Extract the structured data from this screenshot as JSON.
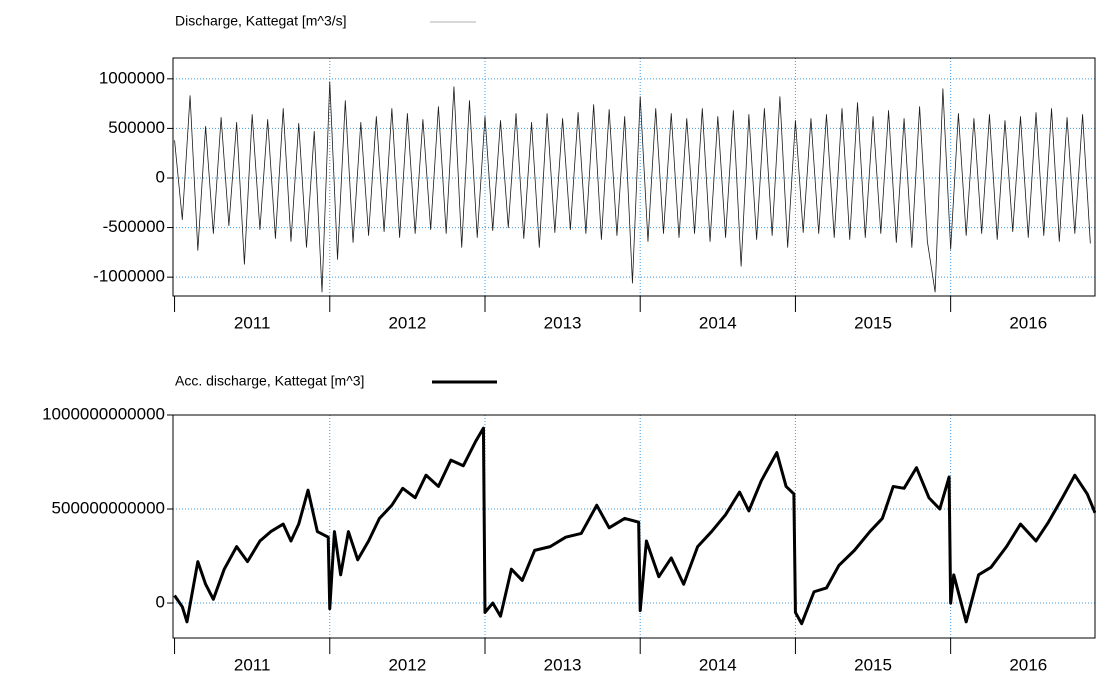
{
  "chart_data": [
    {
      "type": "line",
      "series": [
        {
          "name": "Discharge, Kattegat [m^3/s]",
          "color": "#1a1a1a",
          "x": [
            2011,
            2011.05,
            2011.1,
            2011.15,
            2011.2,
            2011.25,
            2011.3,
            2011.35,
            2011.4,
            2011.45,
            2011.5,
            2011.55,
            2011.6,
            2011.65,
            2011.7,
            2011.75,
            2011.8,
            2011.85,
            2011.9,
            2011.95,
            2012,
            2012.05,
            2012.1,
            2012.15,
            2012.2,
            2012.25,
            2012.3,
            2012.35,
            2012.4,
            2012.45,
            2012.5,
            2012.55,
            2012.6,
            2012.65,
            2012.7,
            2012.75,
            2012.8,
            2012.85,
            2012.9,
            2012.95,
            2013,
            2013.05,
            2013.1,
            2013.15,
            2013.2,
            2013.25,
            2013.3,
            2013.35,
            2013.4,
            2013.45,
            2013.5,
            2013.55,
            2013.6,
            2013.65,
            2013.7,
            2013.75,
            2013.8,
            2013.85,
            2013.9,
            2013.95,
            2014,
            2014.05,
            2014.1,
            2014.15,
            2014.2,
            2014.25,
            2014.3,
            2014.35,
            2014.4,
            2014.45,
            2014.5,
            2014.55,
            2014.6,
            2014.65,
            2014.7,
            2014.75,
            2014.8,
            2014.85,
            2014.9,
            2014.95,
            2015,
            2015.05,
            2015.1,
            2015.15,
            2015.2,
            2015.25,
            2015.3,
            2015.35,
            2015.4,
            2015.45,
            2015.5,
            2015.55,
            2015.6,
            2015.65,
            2015.7,
            2015.75,
            2015.8,
            2015.85,
            2015.9,
            2015.95,
            2016,
            2016.05,
            2016.1,
            2016.15,
            2016.2,
            2016.25,
            2016.3,
            2016.35,
            2016.4,
            2016.45,
            2016.5,
            2016.55,
            2016.6,
            2016.65,
            2016.7,
            2016.75,
            2016.8,
            2016.85,
            2016.9
          ],
          "values": [
            380000,
            -420000,
            830000,
            -730000,
            520000,
            -560000,
            610000,
            -480000,
            560000,
            -870000,
            640000,
            -520000,
            590000,
            -610000,
            700000,
            -640000,
            550000,
            -700000,
            470000,
            -1150000,
            970000,
            -820000,
            780000,
            -650000,
            560000,
            -580000,
            620000,
            -540000,
            700000,
            -600000,
            650000,
            -560000,
            590000,
            -520000,
            720000,
            -560000,
            920000,
            -700000,
            780000,
            -600000,
            620000,
            -530000,
            580000,
            -500000,
            650000,
            -610000,
            560000,
            -700000,
            650000,
            -550000,
            600000,
            -520000,
            660000,
            -560000,
            740000,
            -620000,
            690000,
            -580000,
            620000,
            -1060000,
            820000,
            -640000,
            700000,
            -560000,
            650000,
            -600000,
            600000,
            -560000,
            700000,
            -640000,
            620000,
            -600000,
            680000,
            -890000,
            640000,
            -620000,
            700000,
            -580000,
            820000,
            -700000,
            580000,
            -550000,
            600000,
            -560000,
            640000,
            -600000,
            700000,
            -620000,
            760000,
            -600000,
            620000,
            -560000,
            680000,
            -650000,
            600000,
            -700000,
            720000,
            -640000,
            -1150000,
            900000,
            -720000,
            650000,
            -580000,
            600000,
            -560000,
            640000,
            -620000,
            580000,
            -540000,
            620000,
            -600000,
            660000,
            -580000,
            700000,
            -640000,
            610000,
            -560000,
            640000,
            -660000
          ]
        }
      ],
      "xlim": [
        2010.99,
        2016.93
      ],
      "xticks": [
        2011,
        2012,
        2013,
        2014,
        2015,
        2016
      ],
      "ylim": [
        -1190000,
        1210000
      ],
      "yticks": [
        -1000000,
        -500000,
        0,
        500000,
        1000000
      ],
      "grid": true,
      "line_width": 0.8
    },
    {
      "type": "line",
      "series": [
        {
          "name": "Acc. discharge, Kattegat [m^3]",
          "color": "#000000",
          "x": [
            2011,
            2011.05,
            2011.08,
            2011.15,
            2011.2,
            2011.25,
            2011.32,
            2011.4,
            2011.47,
            2011.55,
            2011.62,
            2011.7,
            2011.75,
            2011.8,
            2011.86,
            2011.92,
            2011.99,
            2012,
            2012.03,
            2012.07,
            2012.12,
            2012.18,
            2012.25,
            2012.32,
            2012.4,
            2012.47,
            2012.55,
            2012.62,
            2012.7,
            2012.78,
            2012.86,
            2012.94,
            2012.99,
            2013,
            2013.05,
            2013.1,
            2013.17,
            2013.24,
            2013.32,
            2013.42,
            2013.52,
            2013.62,
            2013.72,
            2013.8,
            2013.9,
            2013.99,
            2014,
            2014.04,
            2014.12,
            2014.2,
            2014.28,
            2014.37,
            2014.46,
            2014.55,
            2014.64,
            2014.7,
            2014.78,
            2014.88,
            2014.94,
            2014.99,
            2015,
            2015.04,
            2015.12,
            2015.2,
            2015.28,
            2015.38,
            2015.48,
            2015.56,
            2015.63,
            2015.7,
            2015.78,
            2015.86,
            2015.93,
            2015.99,
            2016,
            2016.02,
            2016.1,
            2016.18,
            2016.26,
            2016.36,
            2016.45,
            2016.55,
            2016.63,
            2016.72,
            2016.8,
            2016.88,
            2016.93
          ],
          "values": [
            40000000000,
            -20000000000,
            -100000000000,
            220000000000,
            100000000000,
            20000000000,
            180000000000,
            300000000000,
            220000000000,
            330000000000,
            380000000000,
            420000000000,
            330000000000,
            420000000000,
            600000000000,
            380000000000,
            350000000000,
            -30000000000,
            380000000000,
            150000000000,
            380000000000,
            230000000000,
            330000000000,
            450000000000,
            520000000000,
            610000000000,
            560000000000,
            680000000000,
            620000000000,
            760000000000,
            730000000000,
            860000000000,
            930000000000,
            -50000000000,
            0,
            -70000000000,
            180000000000,
            120000000000,
            280000000000,
            300000000000,
            350000000000,
            370000000000,
            520000000000,
            400000000000,
            450000000000,
            430000000000,
            -40000000000,
            330000000000,
            140000000000,
            240000000000,
            100000000000,
            300000000000,
            380000000000,
            470000000000,
            590000000000,
            490000000000,
            650000000000,
            800000000000,
            620000000000,
            580000000000,
            -50000000000,
            -110000000000,
            60000000000,
            80000000000,
            200000000000,
            280000000000,
            380000000000,
            450000000000,
            620000000000,
            610000000000,
            720000000000,
            560000000000,
            500000000000,
            670000000000,
            0,
            150000000000,
            -100000000000,
            150000000000,
            190000000000,
            300000000000,
            420000000000,
            330000000000,
            430000000000,
            560000000000,
            680000000000,
            580000000000,
            480000000000
          ]
        }
      ],
      "xlim": [
        2010.99,
        2016.93
      ],
      "xticks": [
        2011,
        2012,
        2013,
        2014,
        2015,
        2016
      ],
      "ylim": [
        -186000000000,
        1000000000000
      ],
      "yticks": [
        0,
        500000000000,
        1000000000000
      ],
      "grid": true,
      "line_width": 3
    }
  ]
}
